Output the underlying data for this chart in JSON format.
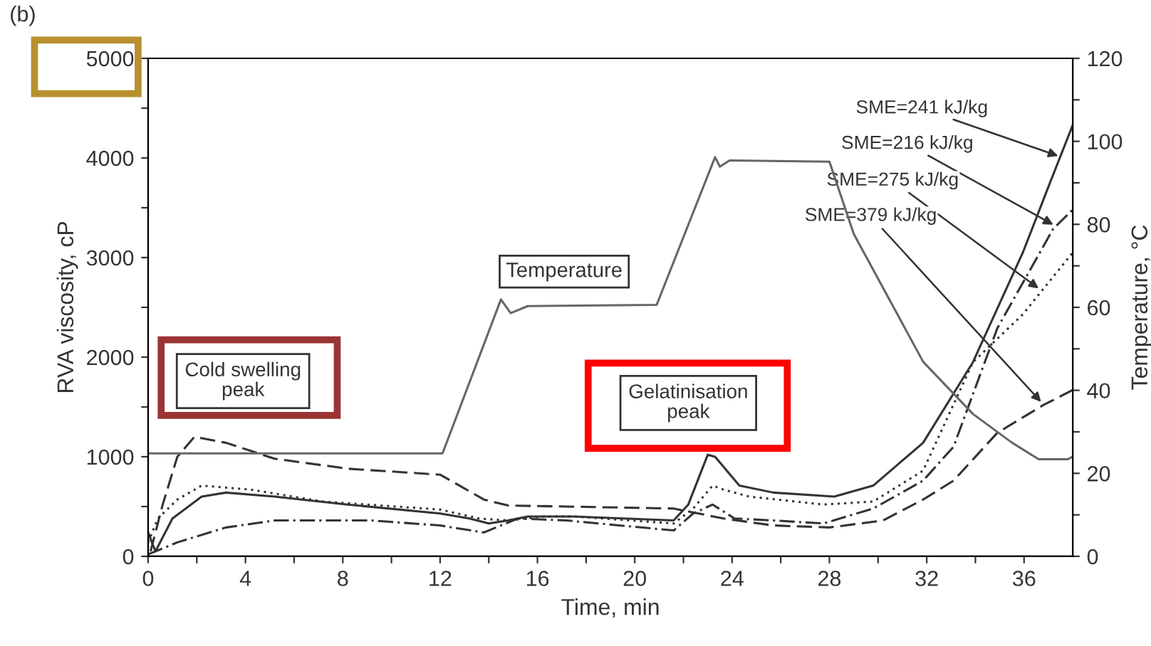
{
  "chart_data": {
    "type": "line",
    "xlabel": "Time, min",
    "ylabel": "RVA viscosity, cP",
    "y2label": "Temperature, °C",
    "xlim": [
      0,
      38
    ],
    "xticks": [
      0,
      {
        "value": 2,
        "label": null
      },
      4,
      {
        "value": 6,
        "label": null
      },
      8,
      {
        "value": 10,
        "label": null
      },
      12,
      {
        "value": 14,
        "label": null
      },
      16,
      {
        "value": 18,
        "label": null
      },
      20,
      {
        "value": 22,
        "label": null
      },
      24,
      {
        "value": 26,
        "label": null
      },
      28,
      {
        "value": 30,
        "label": null
      },
      32,
      {
        "value": 34,
        "label": null
      },
      36
    ],
    "ylim": [
      0,
      5000
    ],
    "yticks": [
      0,
      {
        "value": 500,
        "label": null
      },
      1000,
      {
        "value": 1500,
        "label": null
      },
      2000,
      {
        "value": 2500,
        "label": null
      },
      3000,
      {
        "value": 3500,
        "label": null
      },
      4000,
      {
        "value": 4500,
        "label": null
      },
      5000
    ],
    "y2lim": [
      0,
      120
    ],
    "y2ticks": [
      0,
      {
        "value": 10,
        "label": null
      },
      20,
      {
        "value": 30,
        "label": null
      },
      40,
      {
        "value": 50,
        "label": null
      },
      60,
      {
        "value": 70,
        "label": null
      },
      80,
      {
        "value": 90,
        "label": null
      },
      100,
      {
        "value": 110,
        "label": null
      },
      120
    ],
    "grid": false,
    "marker": "none",
    "series": [
      {
        "name": "Temperature",
        "axis": "y2",
        "color": "#666666",
        "line_style": "solid",
        "x": [
          0,
          12.1,
          14.5,
          14.9,
          15.6,
          20.9,
          23.3,
          23.5,
          23.9,
          28.0,
          29.0,
          31.85,
          33.9,
          35.5,
          36.6,
          37.8,
          38
        ],
        "values": [
          24.8,
          24.8,
          61.9,
          58.6,
          60.3,
          60.6,
          96.2,
          93.9,
          95.4,
          95.1,
          77.7,
          46.9,
          34.3,
          27.4,
          23.4,
          23.4,
          24
        ]
      },
      {
        "color": "#333333",
        "line_style": "solid",
        "x": [
          0,
          0.3,
          1,
          2.2,
          3.2,
          5.2,
          8.2,
          12,
          13.2,
          14,
          14.8,
          15.6,
          17.5,
          21.6,
          22.2,
          23.0,
          23.3,
          24.3,
          25.7,
          28.2,
          29.8,
          31.85,
          33.9,
          35.95,
          37,
          38
        ],
        "values": [
          240,
          50,
          380,
          600,
          640,
          600,
          520,
          430,
          380,
          330,
          360,
          400,
          400,
          360,
          520,
          1020,
          1000,
          710,
          640,
          600,
          710,
          1140,
          1950,
          3050,
          3710,
          4330
        ]
      },
      {
        "color": "#333333",
        "line_style": "dashdot",
        "x": [
          0,
          1.2,
          3.2,
          5.2,
          9.2,
          12,
          13.8,
          15.2,
          17.2,
          21.6,
          22.4,
          23.2,
          24.1,
          25.7,
          27.75,
          29.8,
          31.85,
          33.1,
          34.9,
          37.2,
          38
        ],
        "values": [
          20,
          140,
          290,
          360,
          360,
          310,
          240,
          380,
          360,
          260,
          430,
          520,
          380,
          360,
          330,
          480,
          760,
          1100,
          2290,
          3290,
          3480
        ]
      },
      {
        "color": "#333333",
        "line_style": "dotted",
        "x": [
          0,
          0.4,
          1.2,
          2.2,
          4.2,
          7.2,
          12,
          13.6,
          14.8,
          16.2,
          17.5,
          21.6,
          22.4,
          23.2,
          23.65,
          24.7,
          27.75,
          29.8,
          31.85,
          33.9,
          35.95,
          38
        ],
        "values": [
          140,
          380,
          570,
          710,
          670,
          550,
          470,
          380,
          360,
          400,
          400,
          330,
          480,
          710,
          670,
          600,
          520,
          550,
          860,
          1950,
          2430,
          3050
        ]
      },
      {
        "color": "#333333",
        "line_style": "dashed",
        "x": [
          0.1,
          0.6,
          1.2,
          1.9,
          3.2,
          5.2,
          8.2,
          12,
          12.8,
          13.8,
          14.8,
          17.2,
          21.6,
          22.2,
          23.65,
          25.7,
          28,
          30.2,
          31.85,
          33.1,
          34.9,
          36.8,
          38
        ],
        "values": [
          50,
          520,
          1000,
          1200,
          1140,
          980,
          880,
          820,
          710,
          570,
          510,
          500,
          480,
          450,
          380,
          310,
          290,
          360,
          570,
          760,
          1240,
          1520,
          1670
        ]
      }
    ],
    "annotations": [
      "(b)",
      "Cold swelling\npeak",
      "Gelatinisation\npeak",
      {
        "text": "SME=241 kJ/kg",
        "x": 37.4,
        "y": 4020
      },
      {
        "text": "SME=216 kJ/kg",
        "x": 37.2,
        "y": 3330
      },
      {
        "text": "SME=275 kJ/kg",
        "x": 36.6,
        "y": 2690
      },
      {
        "text": "SME=379 kJ/kg",
        "x": 36.7,
        "y": 1550
      }
    ]
  }
}
